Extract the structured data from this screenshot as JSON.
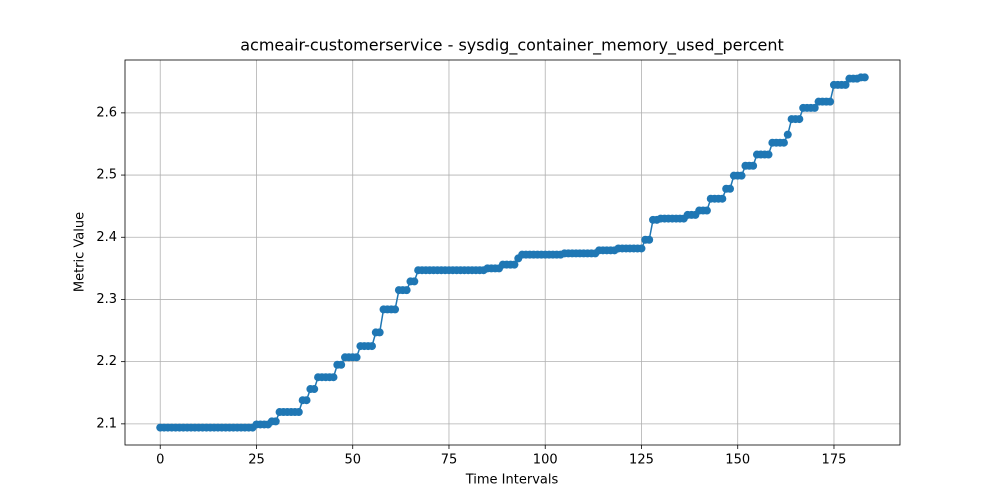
{
  "chart_data": {
    "type": "line",
    "title": "acmeair-customerservice - sysdig_container_memory_used_percent",
    "x_label": "Time Intervals",
    "y_label": "Metric Value",
    "color": "#1f77b4",
    "grid": true,
    "x": [
      0,
      1,
      2,
      3,
      4,
      5,
      6,
      7,
      8,
      9,
      10,
      11,
      12,
      13,
      14,
      15,
      16,
      17,
      18,
      19,
      20,
      21,
      22,
      23,
      24,
      25,
      26,
      27,
      28,
      29,
      30,
      31,
      32,
      33,
      34,
      35,
      36,
      37,
      38,
      39,
      40,
      41,
      42,
      43,
      44,
      45,
      46,
      47,
      48,
      49,
      50,
      51,
      52,
      53,
      54,
      55,
      56,
      57,
      58,
      59,
      60,
      61,
      62,
      63,
      64,
      65,
      66,
      67,
      68,
      69,
      70,
      71,
      72,
      73,
      74,
      75,
      76,
      77,
      78,
      79,
      80,
      81,
      82,
      83,
      84,
      85,
      86,
      87,
      88,
      89,
      90,
      91,
      92,
      93,
      94,
      95,
      96,
      97,
      98,
      99,
      100,
      101,
      102,
      103,
      104,
      105,
      106,
      107,
      108,
      109,
      110,
      111,
      112,
      113,
      114,
      115,
      116,
      117,
      118,
      119,
      120,
      121,
      122,
      123,
      124,
      125,
      126,
      127,
      128,
      129,
      130,
      131,
      132,
      133,
      134,
      135,
      136,
      137,
      138,
      139,
      140,
      141,
      142,
      143,
      144,
      145,
      146,
      147,
      148,
      149,
      150,
      151,
      152,
      153,
      154,
      155,
      156,
      157,
      158,
      159,
      160,
      161,
      162,
      163,
      164,
      165,
      166,
      167,
      168,
      169,
      170,
      171,
      172,
      173,
      174,
      175,
      176,
      177,
      178,
      179,
      180,
      181,
      182,
      183
    ],
    "values": [
      2.094,
      2.094,
      2.094,
      2.094,
      2.094,
      2.094,
      2.094,
      2.094,
      2.094,
      2.094,
      2.094,
      2.094,
      2.094,
      2.094,
      2.094,
      2.094,
      2.094,
      2.094,
      2.094,
      2.094,
      2.094,
      2.094,
      2.094,
      2.094,
      2.094,
      2.099,
      2.099,
      2.099,
      2.099,
      2.104,
      2.104,
      2.119,
      2.119,
      2.119,
      2.119,
      2.119,
      2.119,
      2.138,
      2.138,
      2.156,
      2.156,
      2.175,
      2.175,
      2.175,
      2.175,
      2.175,
      2.195,
      2.195,
      2.207,
      2.207,
      2.207,
      2.207,
      2.225,
      2.225,
      2.225,
      2.225,
      2.247,
      2.247,
      2.284,
      2.284,
      2.284,
      2.284,
      2.315,
      2.315,
      2.315,
      2.329,
      2.329,
      2.347,
      2.347,
      2.347,
      2.347,
      2.347,
      2.347,
      2.347,
      2.347,
      2.347,
      2.347,
      2.347,
      2.347,
      2.347,
      2.347,
      2.347,
      2.347,
      2.347,
      2.347,
      2.35,
      2.35,
      2.35,
      2.35,
      2.356,
      2.356,
      2.356,
      2.356,
      2.366,
      2.372,
      2.372,
      2.372,
      2.372,
      2.372,
      2.372,
      2.372,
      2.372,
      2.372,
      2.372,
      2.372,
      2.374,
      2.374,
      2.374,
      2.374,
      2.374,
      2.374,
      2.374,
      2.374,
      2.374,
      2.379,
      2.379,
      2.379,
      2.379,
      2.379,
      2.382,
      2.382,
      2.382,
      2.382,
      2.382,
      2.382,
      2.382,
      2.396,
      2.396,
      2.428,
      2.428,
      2.43,
      2.43,
      2.43,
      2.43,
      2.43,
      2.43,
      2.43,
      2.436,
      2.436,
      2.436,
      2.443,
      2.443,
      2.443,
      2.462,
      2.462,
      2.462,
      2.462,
      2.478,
      2.478,
      2.499,
      2.499,
      2.499,
      2.515,
      2.515,
      2.515,
      2.533,
      2.533,
      2.533,
      2.533,
      2.552,
      2.552,
      2.552,
      2.552,
      2.565,
      2.59,
      2.59,
      2.59,
      2.608,
      2.608,
      2.608,
      2.608,
      2.618,
      2.618,
      2.618,
      2.618,
      2.645,
      2.645,
      2.645,
      2.645,
      2.655,
      2.655,
      2.655,
      2.657,
      2.657
    ],
    "xlim": [
      -9.15,
      192.15
    ],
    "ylim": [
      2.066,
      2.685
    ],
    "xticks": [
      0,
      25,
      50,
      75,
      100,
      125,
      150,
      175
    ],
    "yticks": [
      2.1,
      2.2,
      2.3,
      2.4,
      2.5,
      2.6
    ]
  }
}
